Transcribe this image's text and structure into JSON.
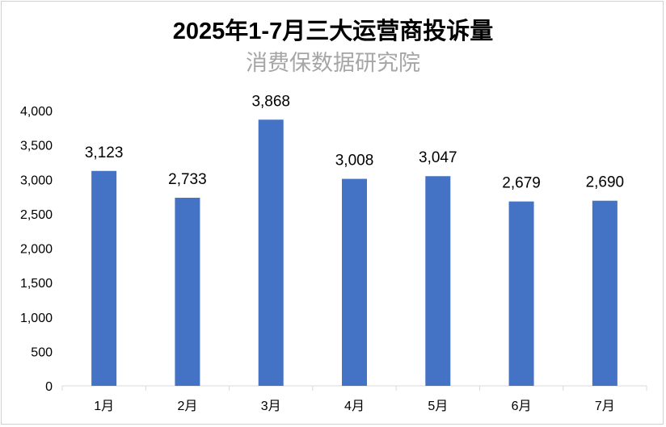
{
  "chart_data": {
    "type": "bar",
    "title": "2025年1-7月三大运营商投诉量",
    "subtitle": "消费保数据研究院",
    "categories": [
      "1月",
      "2月",
      "3月",
      "4月",
      "5月",
      "6月",
      "7月"
    ],
    "values": [
      3123,
      2733,
      3868,
      3008,
      3047,
      2679,
      2690
    ],
    "data_labels": [
      "3,123",
      "2,733",
      "3,868",
      "3,008",
      "3,047",
      "2,679",
      "2,690"
    ],
    "y_ticks": [
      0,
      500,
      1000,
      1500,
      2000,
      2500,
      3000,
      3500,
      4000
    ],
    "y_tick_labels": [
      "0",
      "500",
      "1,000",
      "1,500",
      "2,000",
      "2,500",
      "3,000",
      "3,500",
      "4,000"
    ],
    "ylim": [
      0,
      4000
    ],
    "xlabel": "",
    "ylabel": "",
    "grid": false,
    "legend": "none",
    "colors": {
      "bar": "#4472C4",
      "axis": "#d9d9d9"
    }
  }
}
